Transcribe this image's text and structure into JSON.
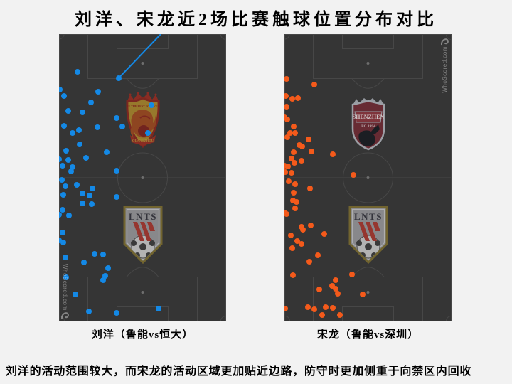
{
  "title": "刘洋、宋龙近2场比赛触球位置分布对比",
  "description": "刘洋的活动范围较大，而宋龙的活动区域更加贴近边路，防守时更加侧重于向禁区内回收",
  "watermark": "WhoScored.com",
  "colors": {
    "page_bg": "#f2f2f2",
    "pitch_bg": "#353535",
    "pitch_line": "#474747",
    "liuyang_dots": "#1489e6",
    "songlong_dots": "#f45a1b"
  },
  "logos": {
    "luneng_initials": "LNTS",
    "shenzhen_name": "SHENZHEN",
    "shenzhen_sub": "FC.1994",
    "evergrande_motto": "BE THE BEST FOREVER",
    "evergrande_city": "GUANGZHOU"
  },
  "pitches": [
    {
      "caption": "刘洋（鲁能vs恒大）"
    },
    {
      "caption": "宋龙（鲁能vs深圳）"
    }
  ],
  "chart_data": {
    "type": "scatter",
    "title": "刘洋、宋龙近2场比赛触球位置分布对比",
    "coords": "x,y in percent of pitch (vertical pitch, origin top-left, own goal at bottom)",
    "series": [
      {
        "name": "刘洋（鲁能vs恒大）",
        "color": "#1489e6",
        "assist_line": {
          "from": [
            60.9,
            0
          ],
          "to": [
            35.7,
            15.3
          ]
        },
        "points": [
          [
            11.1,
            13.1
          ],
          [
            35.7,
            15.3
          ],
          [
            0.4,
            19.3
          ],
          [
            3.0,
            21.5
          ],
          [
            23.4,
            20.0
          ],
          [
            19.1,
            23.8
          ],
          [
            5.5,
            26.7
          ],
          [
            14.0,
            27.2
          ],
          [
            34.5,
            29.2
          ],
          [
            55.3,
            24.8
          ],
          [
            3.0,
            31.9
          ],
          [
            37.9,
            32.2
          ],
          [
            23.0,
            32.4
          ],
          [
            8.1,
            34.4
          ],
          [
            11.9,
            33.4
          ],
          [
            53.2,
            34.4
          ],
          [
            12.3,
            38.4
          ],
          [
            4.3,
            40.6
          ],
          [
            28.5,
            41.1
          ],
          [
            0.0,
            43.6
          ],
          [
            5.5,
            43.8
          ],
          [
            16.2,
            43.1
          ],
          [
            2.1,
            45.8
          ],
          [
            8.1,
            46.3
          ],
          [
            7.2,
            47.8
          ],
          [
            34.5,
            47.5
          ],
          [
            1.7,
            50.7
          ],
          [
            3.8,
            53.0
          ],
          [
            10.6,
            52.5
          ],
          [
            20.0,
            53.7
          ],
          [
            2.6,
            55.9
          ],
          [
            14.0,
            55.4
          ],
          [
            18.3,
            56.2
          ],
          [
            34.5,
            56.7
          ],
          [
            14.0,
            58.9
          ],
          [
            19.6,
            59.2
          ],
          [
            2.1,
            61.1
          ],
          [
            6.0,
            63.1
          ],
          [
            0.0,
            62.9
          ],
          [
            2.1,
            69.1
          ],
          [
            0.0,
            71.8
          ],
          [
            2.6,
            72.5
          ],
          [
            21.3,
            76.5
          ],
          [
            26.4,
            76.7
          ],
          [
            3.8,
            77.7
          ],
          [
            14.9,
            79.5
          ],
          [
            29.4,
            81.4
          ],
          [
            4.3,
            84.7
          ],
          [
            27.7,
            84.2
          ],
          [
            26.4,
            85.6
          ],
          [
            9.8,
            90.6
          ],
          [
            17.9,
            96.5
          ],
          [
            34.5,
            97.0
          ],
          [
            59.6,
            95.5
          ]
        ]
      },
      {
        "name": "宋龙（鲁能vs深圳）",
        "color": "#f45a1b",
        "points": [
          [
            1.3,
            15.6
          ],
          [
            17.9,
            17.6
          ],
          [
            0.9,
            21.5
          ],
          [
            4.7,
            22.5
          ],
          [
            8.1,
            22.3
          ],
          [
            1.3,
            25.2
          ],
          [
            0.0,
            29.0
          ],
          [
            1.7,
            29.7
          ],
          [
            5.5,
            32.2
          ],
          [
            3.4,
            34.4
          ],
          [
            6.4,
            34.4
          ],
          [
            1.7,
            35.9
          ],
          [
            14.5,
            36.6
          ],
          [
            8.9,
            38.6
          ],
          [
            10.6,
            39.1
          ],
          [
            5.5,
            41.1
          ],
          [
            16.2,
            40.8
          ],
          [
            28.9,
            41.8
          ],
          [
            4.3,
            43.3
          ],
          [
            10.2,
            44.1
          ],
          [
            6.0,
            44.8
          ],
          [
            2.1,
            46.0
          ],
          [
            0.0,
            45.8
          ],
          [
            0.4,
            48.0
          ],
          [
            4.3,
            48.3
          ],
          [
            41.3,
            49.0
          ],
          [
            2.6,
            51.2
          ],
          [
            6.4,
            52.2
          ],
          [
            15.3,
            53.7
          ],
          [
            5.5,
            55.2
          ],
          [
            5.1,
            57.9
          ],
          [
            7.2,
            58.4
          ],
          [
            6.4,
            60.6
          ],
          [
            1.3,
            62.6
          ],
          [
            0.0,
            62.1
          ],
          [
            10.2,
            67.1
          ],
          [
            11.1,
            68.1
          ],
          [
            15.7,
            66.6
          ],
          [
            23.8,
            69.6
          ],
          [
            3.8,
            70.0
          ],
          [
            7.7,
            72.0
          ],
          [
            10.2,
            73.0
          ],
          [
            4.7,
            74.5
          ],
          [
            20.0,
            77.0
          ],
          [
            14.9,
            79.2
          ],
          [
            5.1,
            83.9
          ],
          [
            40.4,
            83.7
          ],
          [
            30.6,
            85.6
          ],
          [
            28.5,
            87.6
          ],
          [
            30.6,
            88.6
          ],
          [
            20.9,
            88.9
          ],
          [
            31.9,
            90.3
          ],
          [
            46.8,
            90.6
          ],
          [
            24.7,
            95.0
          ],
          [
            28.9,
            95.3
          ],
          [
            33.2,
            97.8
          ],
          [
            14.0,
            95.0
          ],
          [
            17.9,
            95.8
          ],
          [
            22.6,
            97.8
          ],
          [
            0.4,
            95.5
          ]
        ]
      }
    ]
  }
}
